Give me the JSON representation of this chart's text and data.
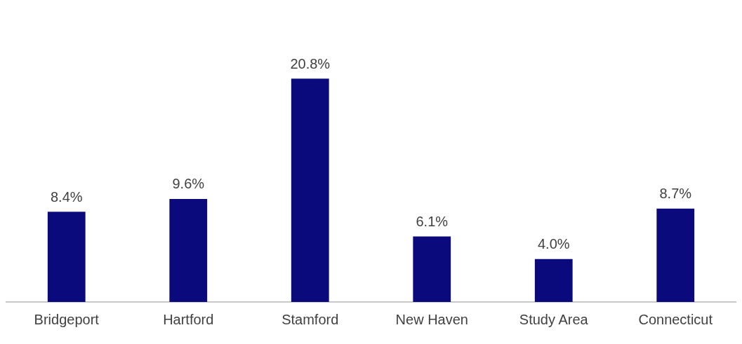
{
  "chart_data": {
    "type": "bar",
    "categories": [
      "Bridgeport",
      "Hartford",
      "Stamford",
      "New Haven",
      "Study Area",
      "Connecticut"
    ],
    "values": [
      8.4,
      9.6,
      20.8,
      6.1,
      4.0,
      8.7
    ],
    "value_labels": [
      "8.4%",
      "9.6%",
      "20.8%",
      "6.1%",
      "4.0%",
      "8.7%"
    ],
    "color": "#0a0a7d",
    "grid": false,
    "legend": false
  }
}
